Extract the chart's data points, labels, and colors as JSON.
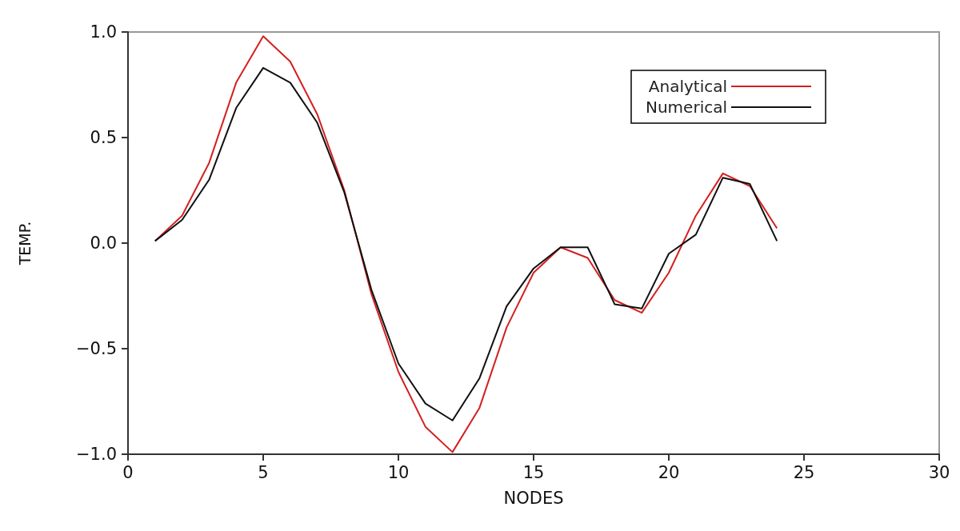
{
  "chart_data": {
    "type": "line",
    "xlabel": "NODES",
    "ylabel": "TEMP.",
    "xlim": [
      0,
      30
    ],
    "xticks": [
      0,
      5,
      10,
      15,
      20,
      25,
      30
    ],
    "ylim": [
      -1.0,
      1.0
    ],
    "yticks": [
      {
        "value": -1,
        "label": "−1.0"
      },
      {
        "value": -0.5,
        "label": "−0.5"
      },
      {
        "value": 0,
        "label": "0.0"
      },
      {
        "value": 0.5,
        "label": "0.5"
      },
      {
        "value": 1,
        "label": "1.0"
      }
    ],
    "x": [
      1,
      2,
      3,
      4,
      5,
      6,
      7,
      8,
      9,
      10,
      11,
      12,
      13,
      14,
      15,
      16,
      17,
      18,
      19,
      20,
      21,
      22,
      23,
      24
    ],
    "series": [
      {
        "name": "Analytical",
        "color": "#d42020",
        "values": [
          0.01,
          0.13,
          0.38,
          0.76,
          0.98,
          0.86,
          0.61,
          0.25,
          -0.24,
          -0.61,
          -0.87,
          -0.99,
          -0.78,
          -0.4,
          -0.14,
          -0.02,
          -0.07,
          -0.27,
          -0.33,
          -0.14,
          0.13,
          0.33,
          0.27,
          0.07
        ]
      },
      {
        "name": "Numerical",
        "color": "#111111",
        "values": [
          0.01,
          0.11,
          0.3,
          0.64,
          0.83,
          0.76,
          0.57,
          0.24,
          -0.22,
          -0.57,
          -0.76,
          -0.84,
          -0.64,
          -0.3,
          -0.12,
          -0.02,
          -0.02,
          -0.29,
          -0.31,
          -0.05,
          0.04,
          0.31,
          0.28,
          0.01
        ]
      }
    ],
    "legend": "top right",
    "grid": false,
    "marker": "none",
    "line_style": "solid"
  }
}
